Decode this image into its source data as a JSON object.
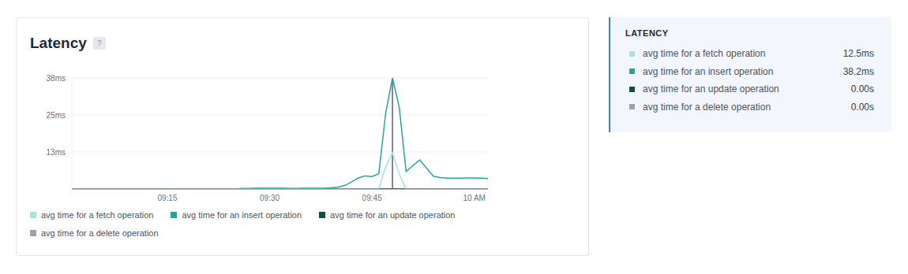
{
  "chart_data": {
    "type": "line",
    "title": "Latency",
    "categories": [
      null,
      null,
      null,
      null,
      null,
      null,
      null,
      null,
      null,
      null,
      null,
      null,
      null,
      null,
      "09:15",
      null,
      null,
      null,
      null,
      null,
      null,
      null,
      null,
      null,
      null,
      null,
      null,
      null,
      null,
      "09:30",
      null,
      null,
      null,
      null,
      null,
      null,
      null,
      null,
      null,
      null,
      null,
      null,
      null,
      null,
      "09:45",
      null,
      null,
      null,
      null,
      null,
      null,
      null,
      null,
      null,
      null,
      null,
      null,
      null,
      null,
      "10 AM",
      null,
      null
    ],
    "series": [
      {
        "name": "avg time for a fetch operation",
        "color": "#a7e2dc",
        "values": [
          0,
          0,
          0,
          0,
          0,
          0,
          0,
          0,
          0,
          0,
          0,
          0,
          0,
          0,
          0,
          0,
          0,
          0,
          0,
          0,
          0,
          0,
          0,
          0,
          0,
          0,
          0,
          0,
          0,
          0,
          0,
          0,
          0,
          0,
          0,
          0,
          0,
          0,
          0,
          0,
          0,
          0,
          0,
          0,
          0,
          0,
          7.5,
          12.5,
          5.0,
          0,
          0,
          0,
          0,
          0,
          0,
          0,
          0,
          0,
          0,
          0,
          0,
          0
        ]
      },
      {
        "name": "avg time for an insert operation",
        "color": "#26a69a",
        "values": [
          0,
          0,
          0,
          0,
          0,
          0,
          0,
          0,
          0,
          0,
          0,
          0,
          0,
          0,
          0,
          0,
          0,
          0,
          0,
          0,
          0,
          0,
          0,
          0,
          0,
          0.2,
          0.2,
          0.3,
          0.3,
          0.3,
          0.3,
          0.3,
          0.2,
          0.2,
          0.3,
          0.3,
          0.3,
          0.3,
          0.4,
          0.6,
          1.2,
          2.4,
          3.8,
          4.5,
          4.3,
          5.2,
          26.0,
          38.2,
          28.0,
          6.0,
          8.0,
          10.0,
          7.2,
          4.4,
          3.9,
          3.7,
          3.7,
          3.7,
          3.8,
          3.8,
          3.7,
          3.6
        ]
      },
      {
        "name": "avg time for an update operation",
        "color": "#0b4f45",
        "values": [
          0,
          0,
          0,
          0,
          0,
          0,
          0,
          0,
          0,
          0,
          0,
          0,
          0,
          0,
          0,
          0,
          0,
          0,
          0,
          0,
          0,
          0,
          0,
          0,
          0,
          0,
          0,
          0,
          0,
          0,
          0,
          0,
          0,
          0,
          0,
          0,
          0,
          0,
          0,
          0,
          0,
          0,
          0,
          0,
          0,
          0,
          0,
          0,
          0,
          0,
          0,
          0,
          0,
          0,
          0,
          0,
          0,
          0,
          0,
          0,
          0,
          0
        ]
      },
      {
        "name": "avg time for a delete operation",
        "color": "#9ca3af",
        "values": [
          0,
          0,
          0,
          0,
          0,
          0,
          0,
          0,
          0,
          0,
          0,
          0,
          0,
          0,
          0,
          0,
          0,
          0,
          0,
          0,
          0,
          0,
          0,
          0,
          0,
          0,
          0,
          0,
          0,
          0,
          0,
          0,
          0,
          0,
          0,
          0,
          0,
          0,
          0,
          0,
          0,
          0,
          0,
          0,
          0,
          0,
          0,
          0,
          0,
          0,
          0,
          0,
          0,
          0,
          0,
          0,
          0,
          0,
          0,
          0,
          0,
          0
        ]
      }
    ],
    "ylim": [
      0,
      38.2
    ],
    "yticks": [
      {
        "value": 12.73,
        "label": "13ms"
      },
      {
        "value": 25.47,
        "label": "25ms"
      },
      {
        "value": 38.2,
        "label": "38ms"
      }
    ],
    "grid": true,
    "legend": "bottom"
  },
  "help_badge": "?",
  "summary": {
    "title": "LATENCY",
    "values": [
      "12.5ms",
      "38.2ms",
      "0.00s",
      "0.00s"
    ]
  }
}
